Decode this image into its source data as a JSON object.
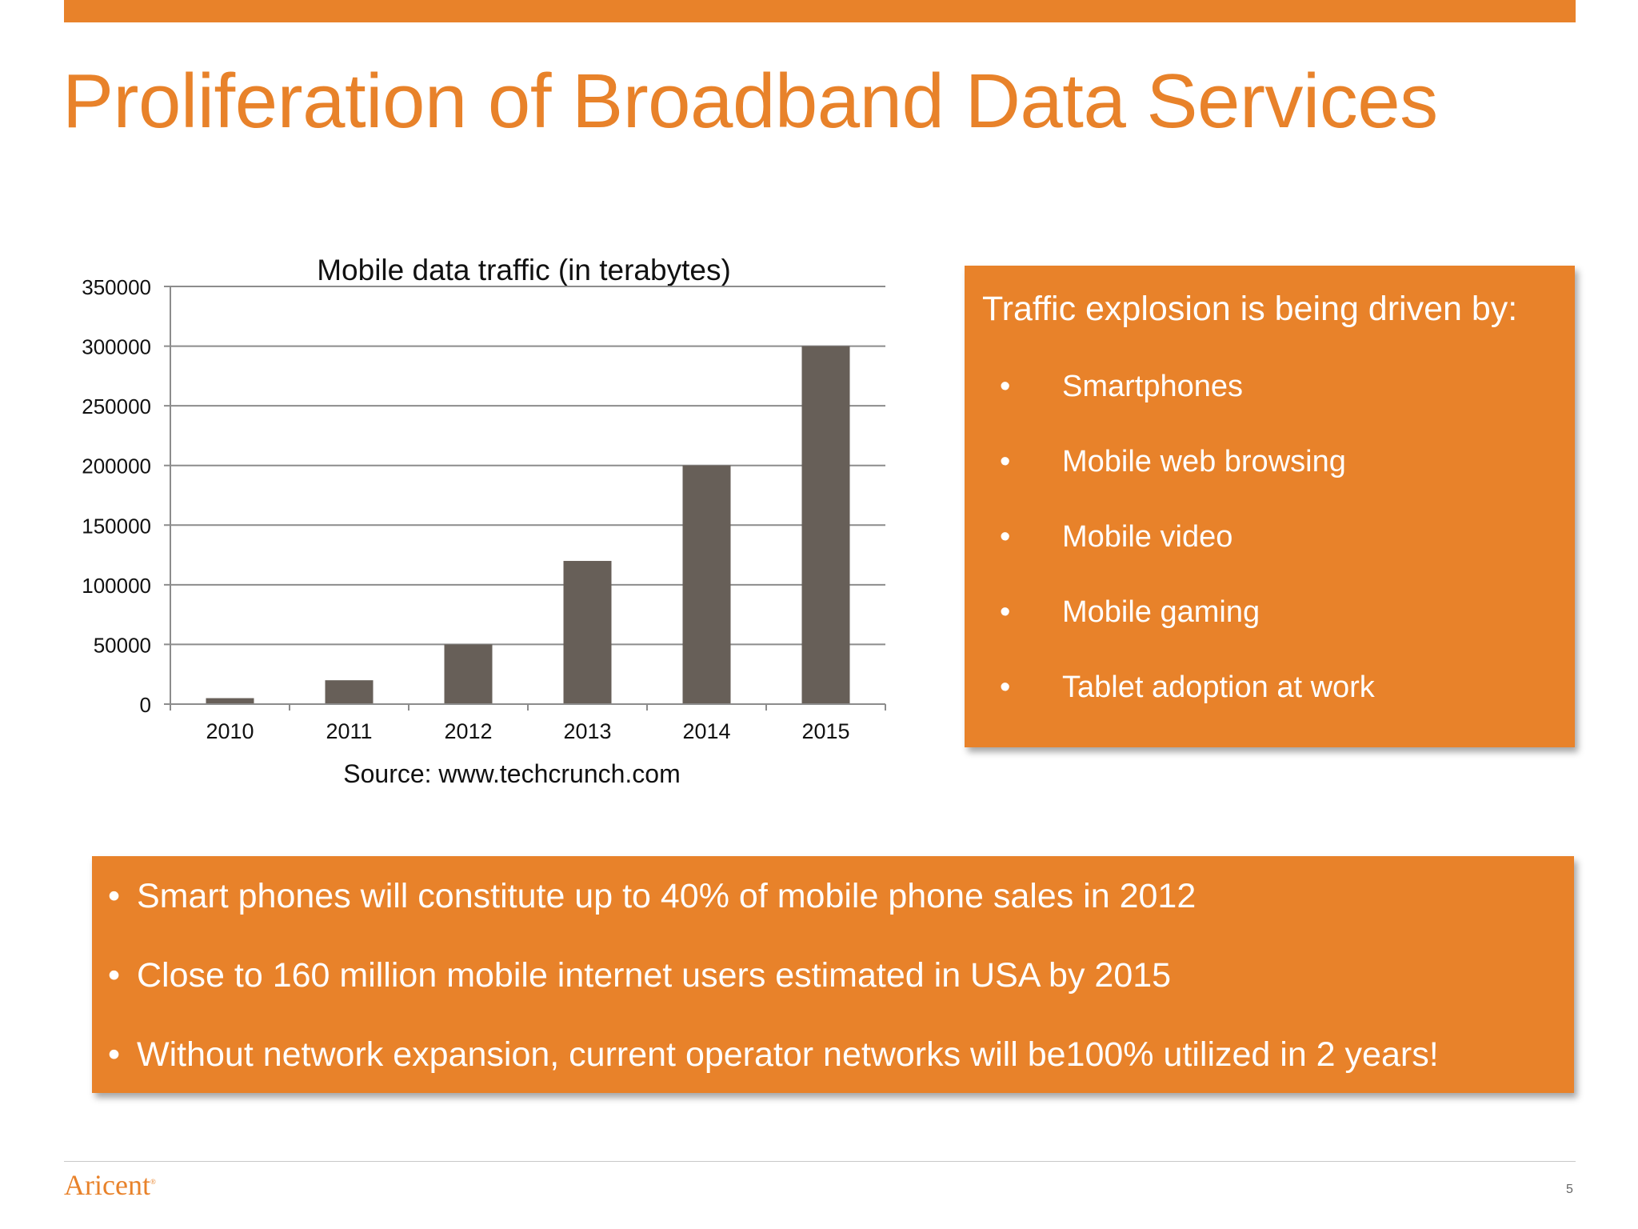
{
  "slide": {
    "title": "Proliferation of Broadband Data Services",
    "page_number": "5",
    "logo_text": "Aricent",
    "accent_color": "#E8822A"
  },
  "drivers": {
    "heading": "Traffic explosion is being driven by:",
    "items": [
      "Smartphones",
      "Mobile web browsing",
      "Mobile video",
      "Mobile gaming",
      "Tablet adoption at work"
    ]
  },
  "facts": {
    "items": [
      "Smart phones will constitute up to 40% of mobile phone sales in 2012",
      "Close to 160 million mobile internet users estimated in USA by 2015",
      "Without network expansion, current operator networks will be100% utilized in 2 years!"
    ]
  },
  "chart_data": {
    "type": "bar",
    "title": "Mobile data traffic (in terabytes)",
    "caption": "Source: www.techcrunch.com",
    "xlabel": "",
    "ylabel": "",
    "categories": [
      "2010",
      "2011",
      "2012",
      "2013",
      "2014",
      "2015"
    ],
    "values": [
      5000,
      20000,
      50000,
      120000,
      200000,
      300000
    ],
    "ylim": [
      0,
      350000
    ],
    "yticks": [
      0,
      50000,
      100000,
      150000,
      200000,
      250000,
      300000,
      350000
    ],
    "grid": true,
    "bar_color": "#675F58"
  }
}
